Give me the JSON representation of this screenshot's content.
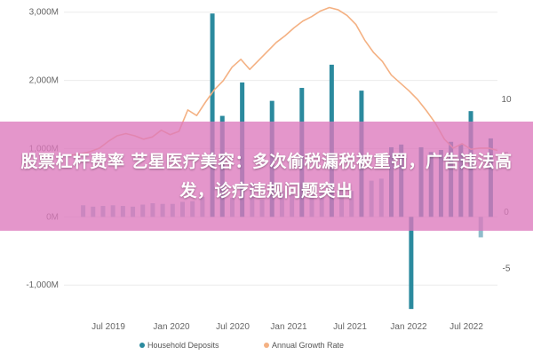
{
  "headline": "股票杠杆费率 艺星医疗美容：多次偷税漏税被重罚，广告违法高发，诊疗违规问题突出",
  "colors": {
    "deposits": "#2b8a9e",
    "deposits_light": "#8fbccb",
    "growth": "#f4b183",
    "axis_text": "#666666"
  },
  "chart_data": {
    "type": "bar",
    "title": "",
    "xlabel": "",
    "ylabel": "",
    "left_axis": {
      "ticks": [
        -1000,
        0,
        1000,
        2000,
        3000
      ],
      "tick_labels": [
        "-1,000M",
        "0M",
        "1,000M",
        "2,000M",
        "3,000M"
      ],
      "range": [
        -1400,
        3100
      ]
    },
    "right_axis": {
      "ticks": [
        -5,
        0,
        5,
        10
      ],
      "tick_labels": [
        "-5",
        "0",
        "5",
        "10"
      ],
      "range": [
        -9,
        18.3
      ]
    },
    "x_tick_labels": [
      "Jul 2019",
      "Jan 2020",
      "Jul 2020",
      "Jan 2021",
      "Jul 2021",
      "Jan 2022",
      "Jul 2022"
    ],
    "legend_position": "bottom",
    "series": [
      {
        "name": "Household Deposits",
        "axis": "left",
        "values": [
          170,
          150,
          160,
          170,
          160,
          150,
          180,
          200,
          190,
          190,
          220,
          230,
          290,
          2980,
          1480,
          280,
          1970,
          500,
          250,
          1700,
          380,
          330,
          1890,
          330,
          350,
          2230,
          410,
          380,
          1850,
          530,
          560,
          1020,
          1060,
          -1350,
          1020,
          950,
          980,
          1100,
          1060,
          1550,
          -300,
          1150
        ]
      },
      {
        "name": "Annual Growth Rate",
        "axis": "right",
        "values": [
          5.0,
          5.0,
          5.1,
          5.3,
          5.6,
          6.2,
          6.7,
          6.9,
          6.7,
          6.4,
          6.6,
          7.2,
          6.8,
          7.1,
          9.0,
          8.5,
          9.7,
          10.8,
          11.6,
          12.8,
          13.5,
          12.6,
          13.4,
          14.2,
          15.0,
          15.6,
          16.3,
          16.9,
          17.3,
          17.8,
          18.1,
          17.9,
          17.4,
          16.6,
          15.2,
          14.1,
          13.3,
          12.1,
          11.4,
          10.7,
          9.9,
          8.9,
          7.8,
          6.4,
          5.6,
          6.0,
          5.5,
          5.6,
          5.6,
          5.4
        ]
      }
    ]
  }
}
